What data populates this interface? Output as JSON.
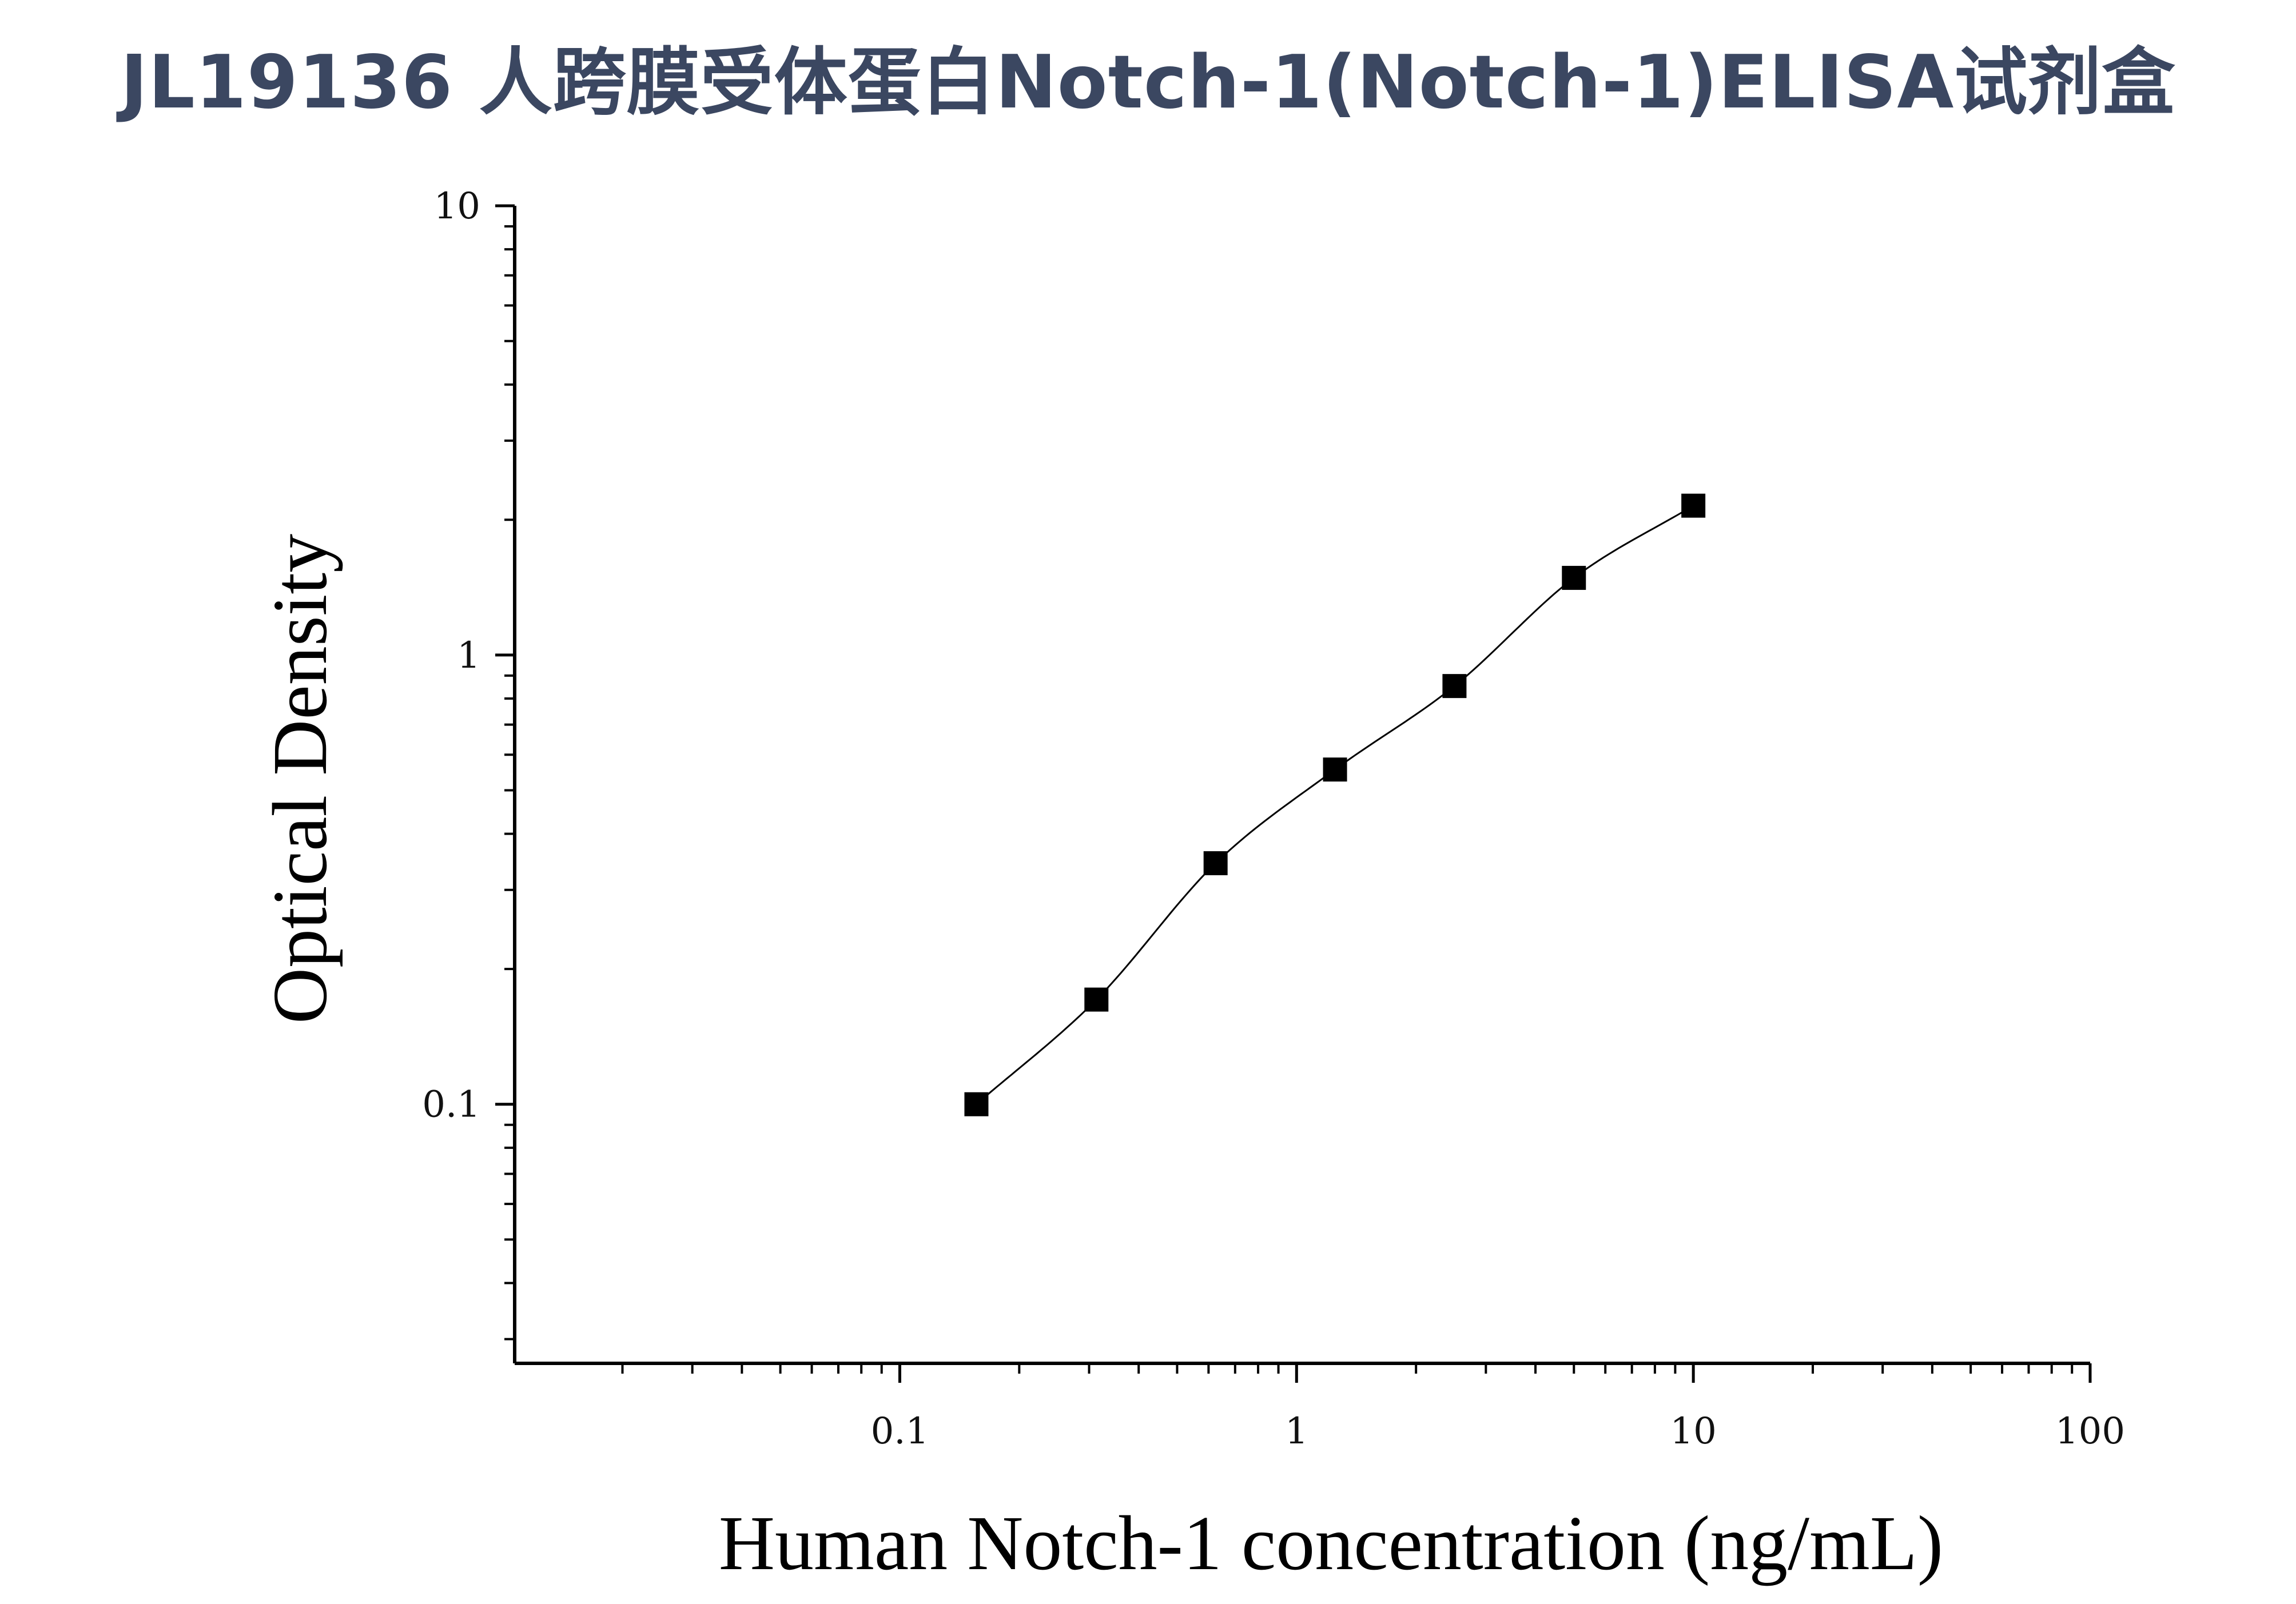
{
  "title": "JL19136 人跨膜受体蛋白Notch-1(Notch-1)ELISA试剂盒",
  "colors": {
    "title": "#3b4761",
    "axis": "#000000",
    "marker": "#000000",
    "curve": "#000000"
  },
  "chart_data": {
    "type": "scatter",
    "title": "",
    "xlabel": "Human Notch-1 concentration (ng/mL)",
    "ylabel": "Optical Density",
    "xscale": "log",
    "yscale": "log",
    "xlim": [
      0.0107,
      100
    ],
    "ylim": [
      0.0265,
      10
    ],
    "x_ticks": [
      {
        "value": 0.1,
        "label": "0.1"
      },
      {
        "value": 1,
        "label": "1"
      },
      {
        "value": 10,
        "label": "10"
      },
      {
        "value": 100,
        "label": "100"
      }
    ],
    "y_ticks": [
      {
        "value": 0.1,
        "label": "0.1"
      },
      {
        "value": 1,
        "label": "1"
      },
      {
        "value": 10,
        "label": "10"
      }
    ],
    "grid": false,
    "marker": "square",
    "series": [
      {
        "x": [
          0.156,
          0.313,
          0.625,
          1.25,
          2.5,
          5,
          10
        ],
        "y": [
          0.1,
          0.171,
          0.344,
          0.556,
          0.853,
          1.485,
          2.15
        ]
      }
    ],
    "fit_curve": true
  }
}
